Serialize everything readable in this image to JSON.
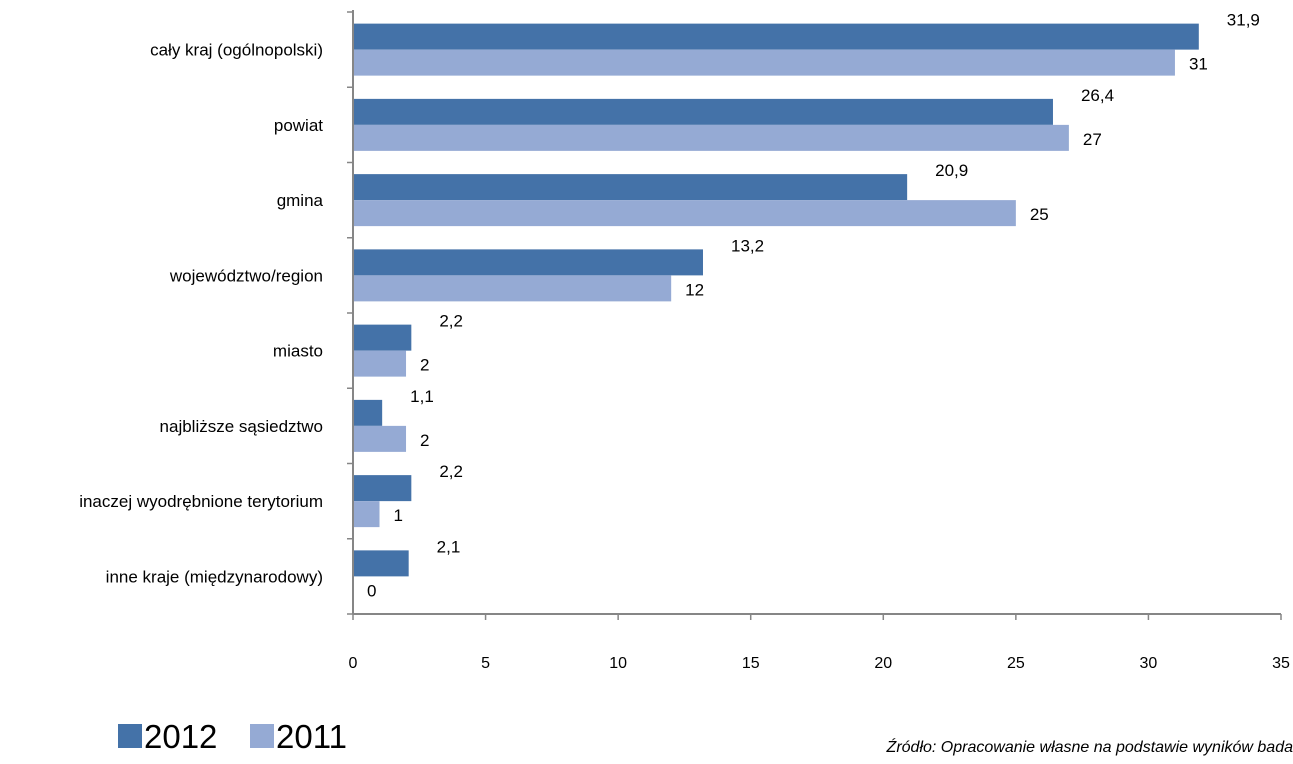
{
  "chart_data": {
    "type": "bar",
    "orientation": "horizontal",
    "categories": [
      "cały kraj (ogólnopolski)",
      "powiat",
      "gmina",
      "województwo/region",
      "miasto",
      "najbliższe sąsiedztwo",
      "inaczej wyodrębnione terytorium",
      "inne kraje (międzynarodowy)"
    ],
    "series": [
      {
        "name": "2012",
        "color": "#4472a8",
        "values": [
          31.9,
          26.4,
          20.9,
          13.2,
          2.2,
          1.1,
          2.2,
          2.1
        ],
        "labels": [
          "31,9",
          "26,4",
          "20,9",
          "13,2",
          "2,2",
          "1,1",
          "2,2",
          "2,1"
        ]
      },
      {
        "name": "2011",
        "color": "#95aad4",
        "values": [
          31,
          27,
          25,
          12,
          2,
          2,
          1,
          0
        ],
        "labels": [
          "31",
          "27",
          "25",
          "12",
          "2",
          "2",
          "1",
          "0"
        ]
      }
    ],
    "xlim": [
      0,
      35
    ],
    "xticks": [
      0,
      5,
      10,
      15,
      20,
      25,
      30,
      35
    ],
    "grid": false,
    "legend_position": "bottom-left",
    "source": "Źródło: Opracowanie własne na podstawie wyników bada"
  }
}
